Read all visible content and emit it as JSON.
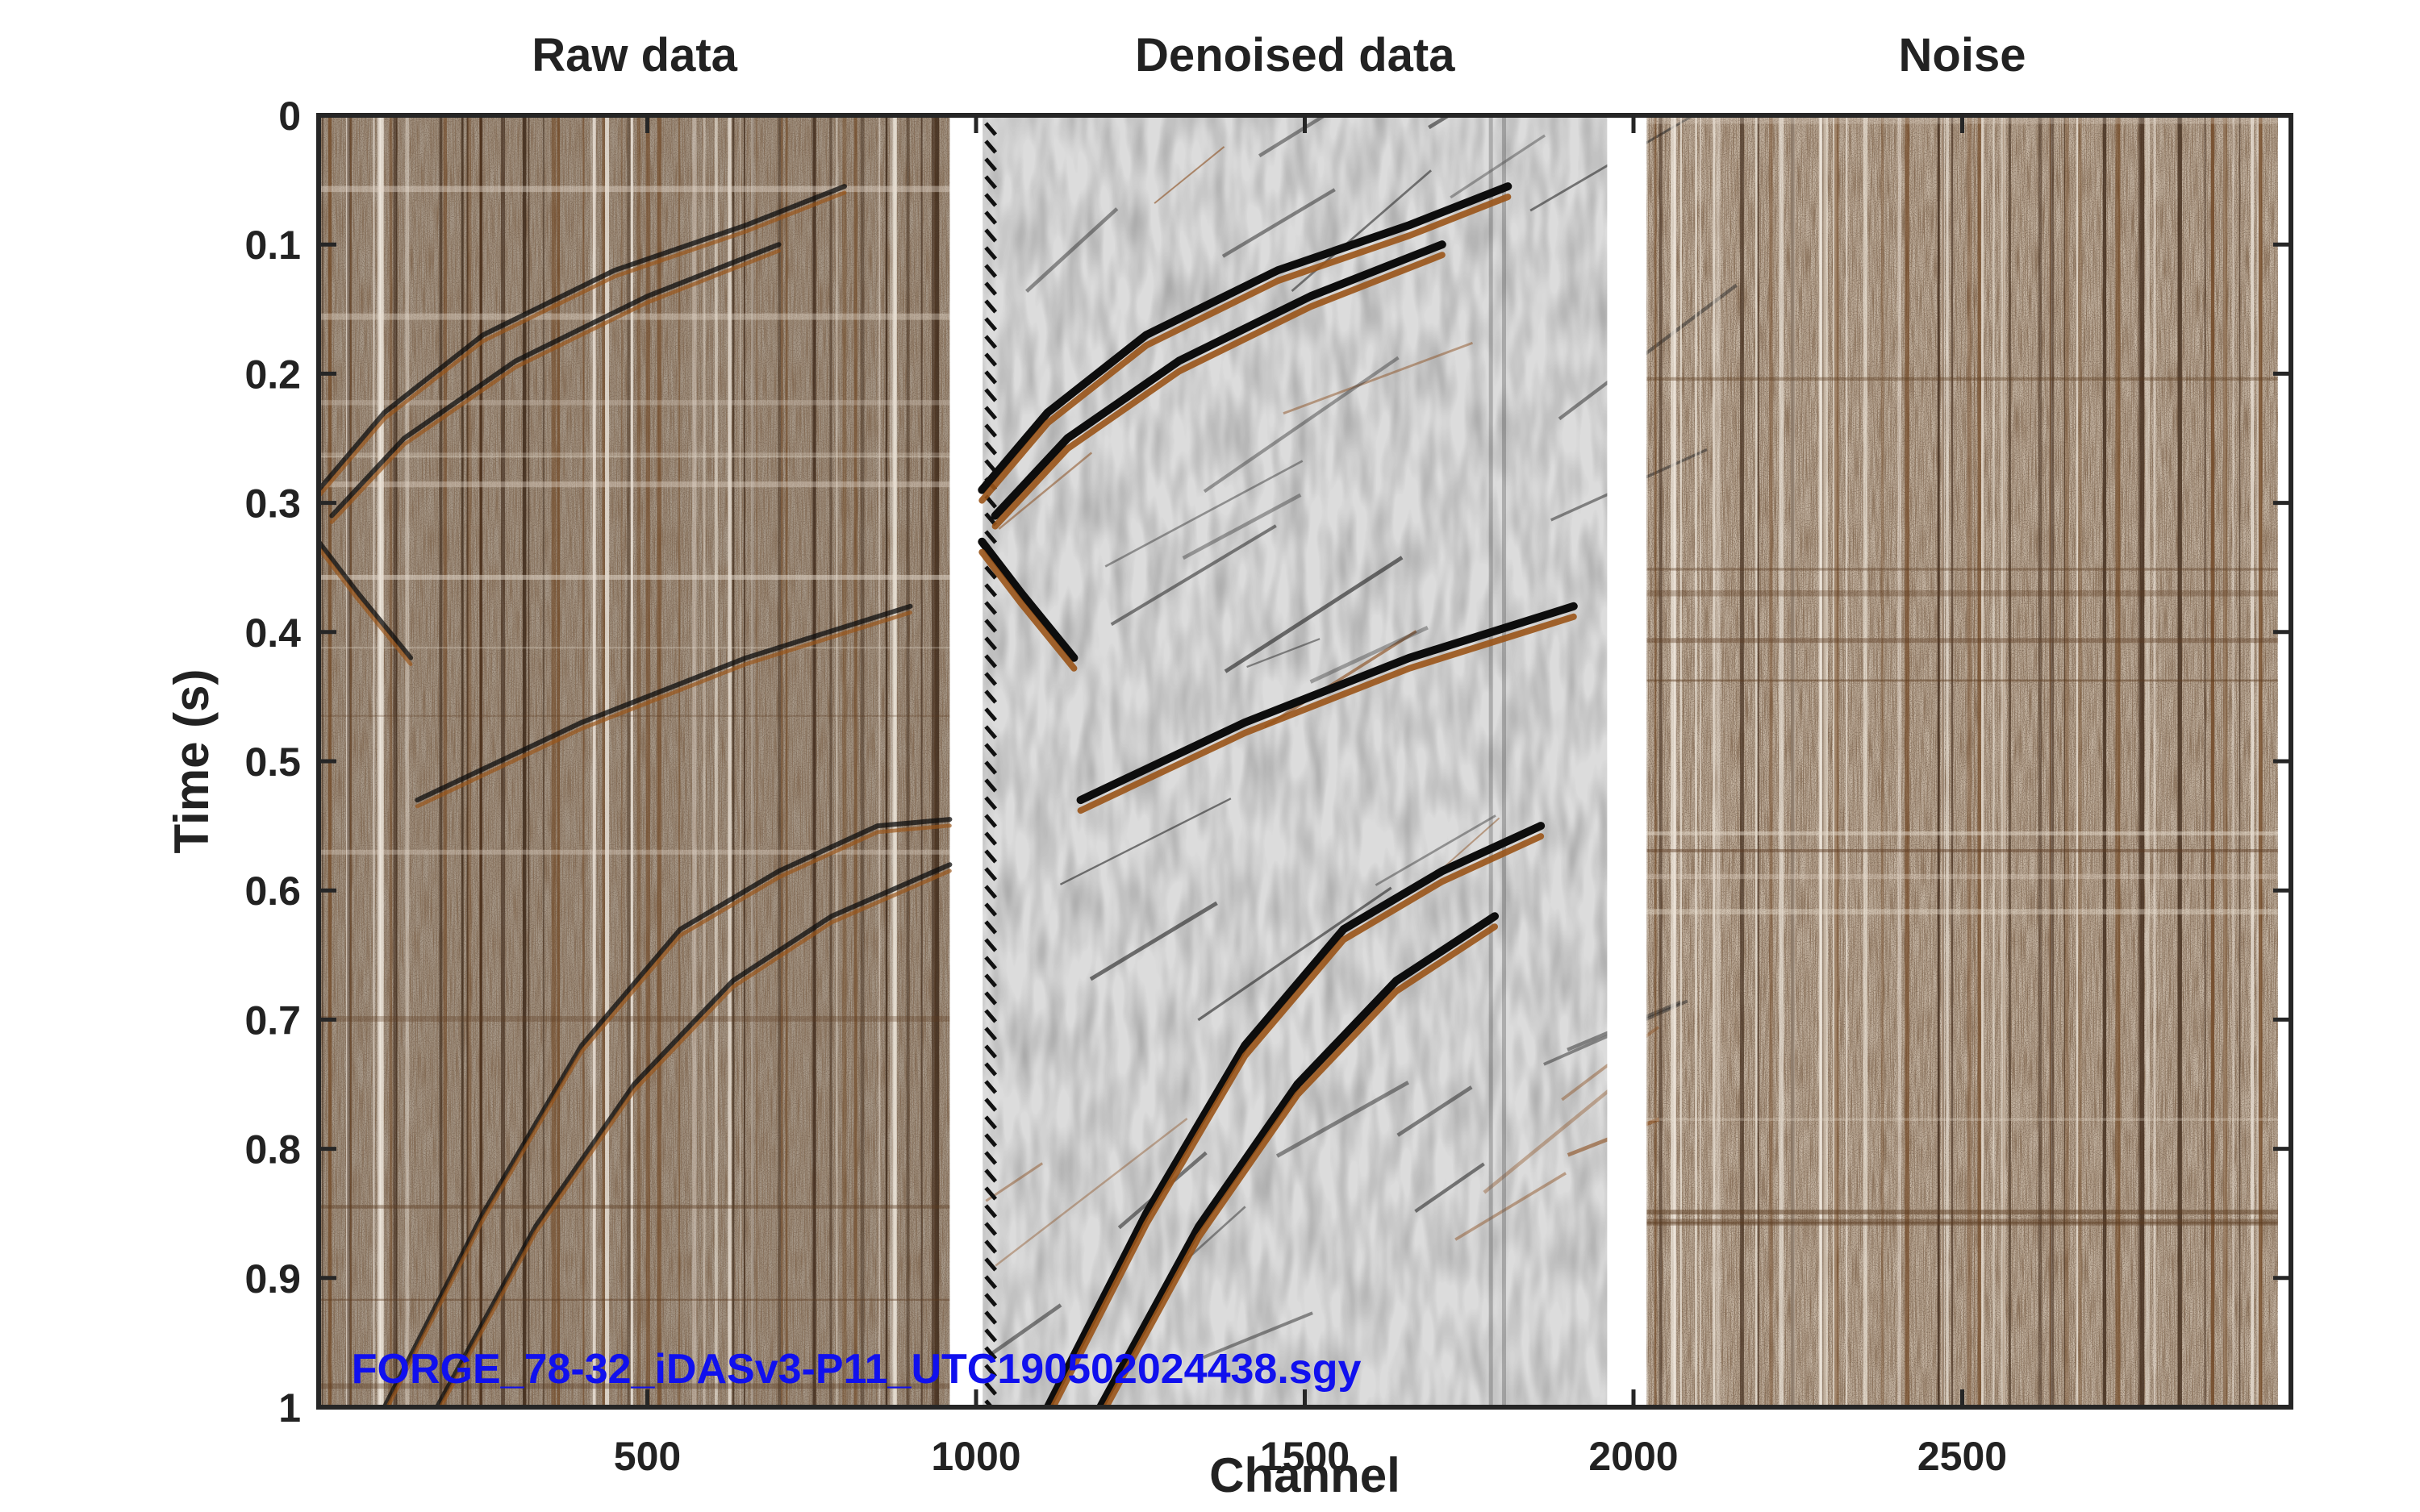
{
  "chart_data": {
    "type": "heatmap",
    "panels": [
      {
        "title": "Raw data",
        "x_range": [
          1,
          960
        ]
      },
      {
        "title": "Denoised data",
        "x_range": [
          1010,
          1960
        ]
      },
      {
        "title": "Noise",
        "x_range": [
          2020,
          2980
        ]
      }
    ],
    "xlabel": "Channel",
    "ylabel": "Time (s)",
    "xlim": [
      0,
      3000
    ],
    "ylim": [
      0,
      1
    ],
    "y_reversed": true,
    "x_ticks": [
      {
        "value": 500,
        "label": "500"
      },
      {
        "value": 1000,
        "label": "1000"
      },
      {
        "value": 1500,
        "label": "1500"
      },
      {
        "value": 2000,
        "label": "2000"
      },
      {
        "value": 2500,
        "label": "2500"
      }
    ],
    "y_ticks": [
      {
        "value": 0,
        "label": "0"
      },
      {
        "value": 0.1,
        "label": "0.1"
      },
      {
        "value": 0.2,
        "label": "0.2"
      },
      {
        "value": 0.3,
        "label": "0.3"
      },
      {
        "value": 0.4,
        "label": "0.4"
      },
      {
        "value": 0.5,
        "label": "0.5"
      },
      {
        "value": 0.6,
        "label": "0.6"
      },
      {
        "value": 0.7,
        "label": "0.7"
      },
      {
        "value": 0.8,
        "label": "0.8"
      },
      {
        "value": 0.9,
        "label": "0.9"
      },
      {
        "value": 1,
        "label": "1"
      }
    ],
    "annotation": {
      "text": "FORGE_78-32_iDASv3-P11_UTC190502024438.sgy",
      "x": 50,
      "y": 0.97
    },
    "events": [
      {
        "name": "first-arrival",
        "points": [
          [
            0,
            0.29
          ],
          [
            100,
            0.23
          ],
          [
            250,
            0.17
          ],
          [
            450,
            0.12
          ],
          [
            650,
            0.085
          ],
          [
            800,
            0.055
          ]
        ]
      },
      {
        "name": "first-arrival-echo",
        "points": [
          [
            20,
            0.31
          ],
          [
            130,
            0.25
          ],
          [
            300,
            0.19
          ],
          [
            500,
            0.14
          ],
          [
            700,
            0.1
          ]
        ]
      },
      {
        "name": "back-scatter",
        "points": [
          [
            0,
            0.33
          ],
          [
            60,
            0.37
          ],
          [
            140,
            0.42
          ]
        ]
      },
      {
        "name": "mid-reflection",
        "points": [
          [
            150,
            0.53
          ],
          [
            400,
            0.47
          ],
          [
            650,
            0.42
          ],
          [
            900,
            0.38
          ]
        ]
      },
      {
        "name": "late-reflection",
        "points": [
          [
            100,
            1.0
          ],
          [
            250,
            0.85
          ],
          [
            400,
            0.72
          ],
          [
            550,
            0.63
          ],
          [
            700,
            0.585
          ],
          [
            850,
            0.55
          ],
          [
            960,
            0.545
          ]
        ]
      },
      {
        "name": "late-reflection-echo",
        "points": [
          [
            180,
            1.0
          ],
          [
            330,
            0.86
          ],
          [
            480,
            0.75
          ],
          [
            630,
            0.67
          ],
          [
            780,
            0.62
          ],
          [
            960,
            0.58
          ]
        ]
      }
    ],
    "colormap": {
      "negative": "#0d0d0d",
      "zero": "#e8e8e8",
      "positive": "#9a5418"
    },
    "grid": false
  }
}
